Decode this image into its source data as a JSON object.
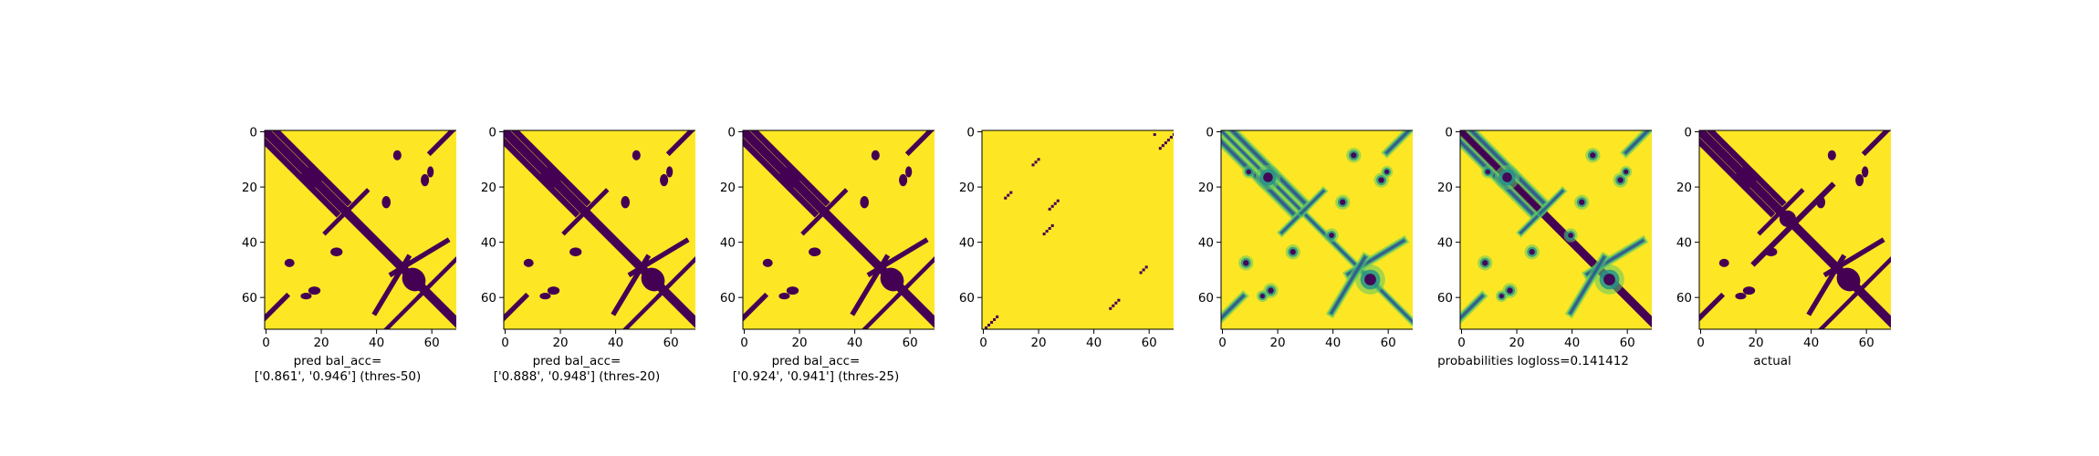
{
  "colors": {
    "low": "#440154",
    "high": "#fde725",
    "mid1": "#21918c",
    "mid2": "#5ec962",
    "mid3": "#3b528b"
  },
  "chart_data": [
    {
      "type": "heatmap",
      "colormap": "viridis",
      "size": 72,
      "xticks": [
        "0",
        "20",
        "40",
        "60"
      ],
      "yticks": [
        "0",
        "20",
        "40",
        "60"
      ],
      "xlabel": "pred bal_acc=\n['0.861', '0.946'] (thres-50)"
    },
    {
      "type": "heatmap",
      "colormap": "viridis",
      "size": 72,
      "xticks": [
        "0",
        "20",
        "40",
        "60"
      ],
      "yticks": [
        "0",
        "20",
        "40",
        "60"
      ],
      "xlabel": "pred bal_acc=\n['0.888', '0.948'] (thres-20)"
    },
    {
      "type": "heatmap",
      "colormap": "viridis",
      "size": 72,
      "xticks": [
        "0",
        "20",
        "40",
        "60"
      ],
      "yticks": [
        "0",
        "20",
        "40",
        "60"
      ],
      "xlabel": "pred bal_acc=\n['0.924', '0.941'] (thres-25)"
    },
    {
      "type": "heatmap",
      "colormap": "viridis",
      "size": 72,
      "xticks": [
        "0",
        "20",
        "40",
        "60"
      ],
      "yticks": [
        "0",
        "20",
        "40",
        "60"
      ],
      "xlabel": ""
    },
    {
      "type": "heatmap",
      "colormap": "viridis",
      "size": 72,
      "xticks": [
        "0",
        "20",
        "40",
        "60"
      ],
      "yticks": [
        "0",
        "20",
        "40",
        "60"
      ],
      "xlabel": ""
    },
    {
      "type": "heatmap",
      "colormap": "viridis",
      "size": 72,
      "xticks": [
        "0",
        "20",
        "40",
        "60"
      ],
      "yticks": [
        "0",
        "20",
        "40",
        "60"
      ],
      "xlabel": "probabilities logloss=0.141412"
    },
    {
      "type": "heatmap",
      "colormap": "viridis",
      "size": 72,
      "xticks": [
        "0",
        "20",
        "40",
        "60"
      ],
      "yticks": [
        "0",
        "20",
        "40",
        "60"
      ],
      "xlabel": "actual"
    }
  ]
}
